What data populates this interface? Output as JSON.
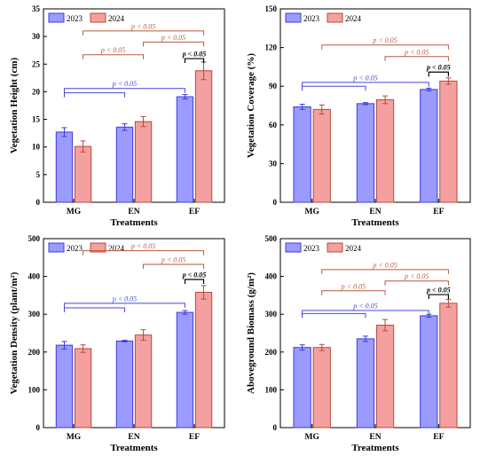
{
  "colors": {
    "series_2023_fill": "#9b9bff",
    "series_2023_stroke": "#3c3cdc",
    "series_2024_fill": "#f4a0a0",
    "series_2024_stroke": "#b84a3a",
    "bracket_blue": "#4747d6",
    "bracket_red": "#b85a3c",
    "bracket_black": "#000000"
  },
  "chart_data": [
    {
      "type": "bar",
      "ylabel": "Vegetation Height (cm)",
      "xlabel": "Treatments",
      "categories": [
        "MG",
        "EN",
        "EF"
      ],
      "ylim": [
        0,
        35
      ],
      "yticks": [
        "0",
        "5",
        "10",
        "15",
        "20",
        "25",
        "30",
        "35"
      ],
      "legend": "top-left",
      "series": [
        {
          "name": "2023",
          "values": [
            12.7,
            13.6,
            19.1
          ],
          "errors": [
            0.8,
            0.6,
            0.4
          ]
        },
        {
          "name": "2024",
          "values": [
            10.1,
            14.6,
            23.8
          ],
          "errors": [
            1.0,
            0.9,
            1.6
          ]
        }
      ],
      "annotations": [
        {
          "text": "p < 0.05",
          "color": "red",
          "from": [
            "MG",
            "2024"
          ],
          "to": [
            "EF",
            "2024"
          ],
          "level": 31.0
        },
        {
          "text": "p < 0.05",
          "color": "red",
          "from": [
            "EN",
            "2024"
          ],
          "to": [
            "EF",
            "2024"
          ],
          "level": 29.0
        },
        {
          "text": "p < 0.05",
          "color": "red",
          "from": [
            "MG",
            "2024"
          ],
          "to": [
            "EN",
            "2024"
          ],
          "level": 26.7
        },
        {
          "text": "p < 0.05",
          "color": "black",
          "from": [
            "EF",
            "2023"
          ],
          "to": [
            "EF",
            "2024"
          ],
          "level": 26.0
        },
        {
          "text": "",
          "color": "blue",
          "from": [
            "MG",
            "2023"
          ],
          "to": [
            "EN",
            "2023"
          ],
          "level": 19.8
        },
        {
          "text": "p < 0.05",
          "color": "blue",
          "from": [
            "MG",
            "2023"
          ],
          "to": [
            "EF",
            "2023"
          ],
          "level": 20.6
        }
      ]
    },
    {
      "type": "bar",
      "ylabel": "Vegetation  Coverage (%)",
      "xlabel": "Treatments",
      "categories": [
        "MG",
        "EN",
        "EF"
      ],
      "ylim": [
        0,
        150
      ],
      "yticks": [
        "0",
        "30",
        "60",
        "90",
        "120",
        "150"
      ],
      "legend": "top-left",
      "series": [
        {
          "name": "2023",
          "values": [
            74,
            76.5,
            87.5
          ],
          "errors": [
            2,
            0.8,
            1
          ]
        },
        {
          "name": "2024",
          "values": [
            72,
            79.5,
            94
          ],
          "errors": [
            3.5,
            3,
            2.5
          ]
        }
      ],
      "annotations": [
        {
          "text": "p < 0.05",
          "color": "red",
          "from": [
            "MG",
            "2024"
          ],
          "to": [
            "EF",
            "2024"
          ],
          "level": 122
        },
        {
          "text": "p < 0.05",
          "color": "red",
          "from": [
            "EN",
            "2024"
          ],
          "to": [
            "EF",
            "2024"
          ],
          "level": 113
        },
        {
          "text": "p < 0.05",
          "color": "black",
          "from": [
            "EF",
            "2023"
          ],
          "to": [
            "EF",
            "2024"
          ],
          "level": 101
        },
        {
          "text": "",
          "color": "blue",
          "from": [
            "MG",
            "2023"
          ],
          "to": [
            "EN",
            "2023"
          ],
          "level": 90
        },
        {
          "text": "p < 0.05",
          "color": "blue",
          "from": [
            "MG",
            "2023"
          ],
          "to": [
            "EF",
            "2023"
          ],
          "level": 93
        }
      ]
    },
    {
      "type": "bar",
      "ylabel": "Vegetation  Density (plant/m²)",
      "xlabel": "Treatments",
      "categories": [
        "MG",
        "EN",
        "EF"
      ],
      "ylim": [
        0,
        500
      ],
      "yticks": [
        "0",
        "100",
        "200",
        "300",
        "400",
        "500"
      ],
      "legend": "top-left",
      "series": [
        {
          "name": "2023",
          "values": [
            218,
            229,
            305
          ],
          "errors": [
            10,
            2,
            5
          ]
        },
        {
          "name": "2024",
          "values": [
            209,
            245,
            358
          ],
          "errors": [
            10,
            14,
            18
          ]
        }
      ],
      "annotations": [
        {
          "text": "p < 0.05",
          "color": "red",
          "from": [
            "MG",
            "2024"
          ],
          "to": [
            "EF",
            "2024"
          ],
          "level": 468
        },
        {
          "text": "p < 0.05",
          "color": "red",
          "from": [
            "EN",
            "2024"
          ],
          "to": [
            "EF",
            "2024"
          ],
          "level": 432
        },
        {
          "text": "p < 0.05",
          "color": "black",
          "from": [
            "EF",
            "2023"
          ],
          "to": [
            "EF",
            "2024"
          ],
          "level": 392
        },
        {
          "text": "",
          "color": "blue",
          "from": [
            "MG",
            "2023"
          ],
          "to": [
            "EN",
            "2023"
          ],
          "level": 317
        },
        {
          "text": "p < 0.05",
          "color": "blue",
          "from": [
            "MG",
            "2023"
          ],
          "to": [
            "EF",
            "2023"
          ],
          "level": 329
        }
      ]
    },
    {
      "type": "bar",
      "ylabel": "Aboveground  Biomass (g/m²)",
      "xlabel": "Treatments",
      "categories": [
        "MG",
        "EN",
        "EF"
      ],
      "ylim": [
        0,
        500
      ],
      "yticks": [
        "0",
        "100",
        "200",
        "300",
        "400",
        "500"
      ],
      "legend": "top-left",
      "series": [
        {
          "name": "2023",
          "values": [
            212,
            235,
            296
          ],
          "errors": [
            7,
            7,
            4
          ]
        },
        {
          "name": "2024",
          "values": [
            212,
            271,
            329
          ],
          "errors": [
            8,
            15,
            10
          ]
        }
      ],
      "annotations": [
        {
          "text": "p < 0.05",
          "color": "red",
          "from": [
            "MG",
            "2024"
          ],
          "to": [
            "EF",
            "2024"
          ],
          "level": 418
        },
        {
          "text": "p < 0.05",
          "color": "red",
          "from": [
            "EN",
            "2024"
          ],
          "to": [
            "EF",
            "2024"
          ],
          "level": 388
        },
        {
          "text": "p < 0.05",
          "color": "red",
          "from": [
            "MG",
            "2024"
          ],
          "to": [
            "EN",
            "2024"
          ],
          "level": 362
        },
        {
          "text": "p < 0.05",
          "color": "black",
          "from": [
            "EF",
            "2023"
          ],
          "to": [
            "EF",
            "2024"
          ],
          "level": 352
        },
        {
          "text": "",
          "color": "blue",
          "from": [
            "MG",
            "2023"
          ],
          "to": [
            "EN",
            "2023"
          ],
          "level": 302
        },
        {
          "text": "p < 0.05",
          "color": "blue",
          "from": [
            "MG",
            "2023"
          ],
          "to": [
            "EF",
            "2023"
          ],
          "level": 310
        }
      ]
    }
  ]
}
